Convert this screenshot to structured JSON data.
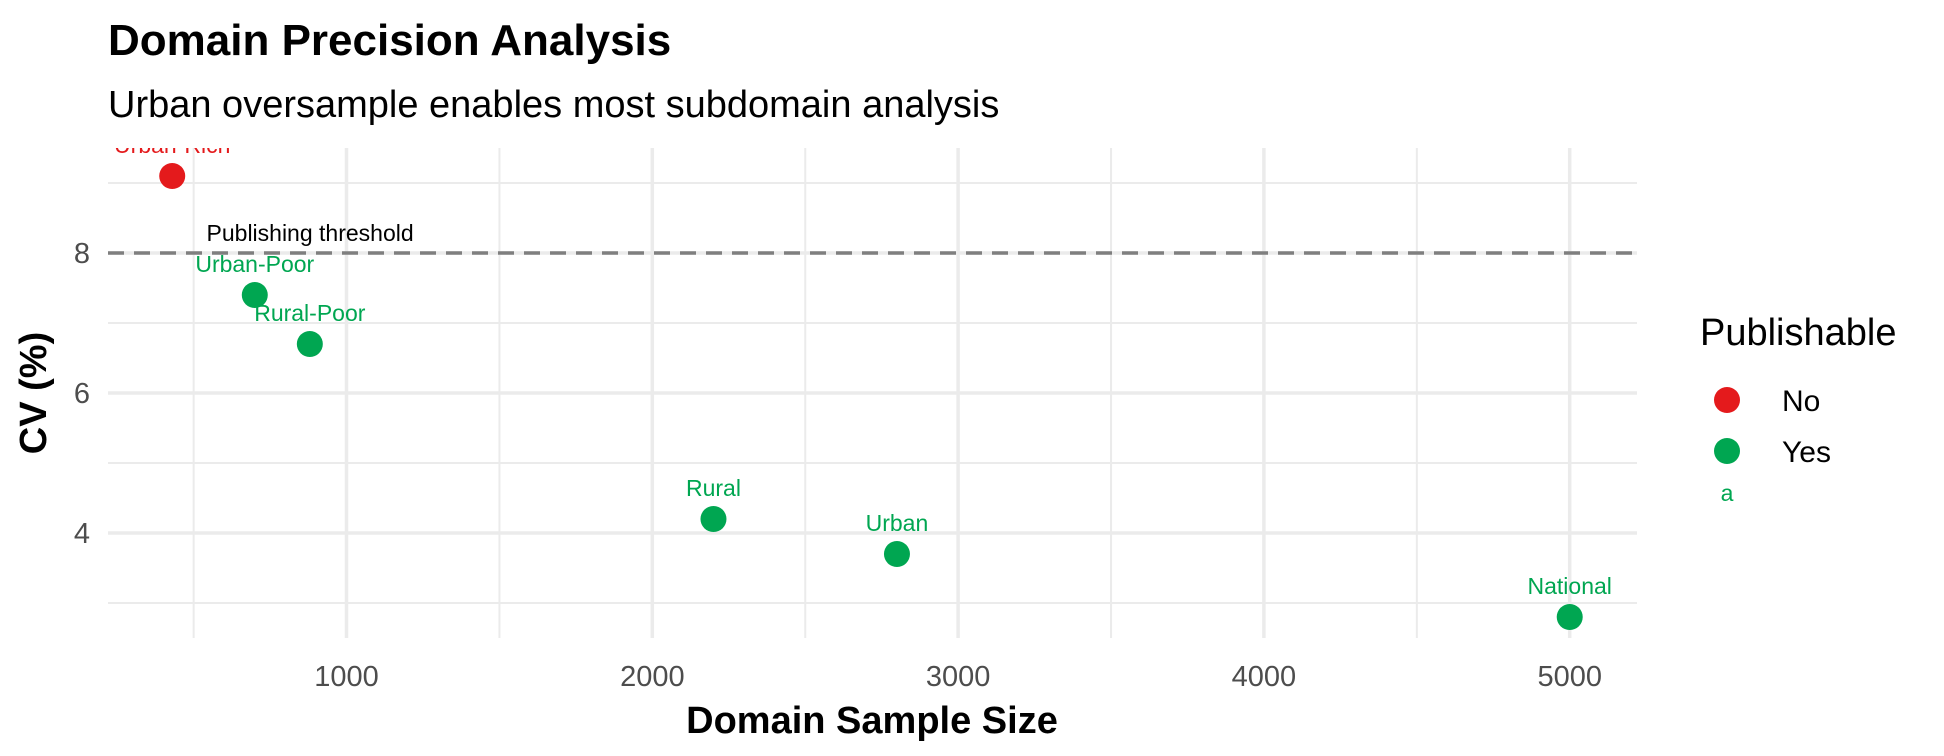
{
  "chart_data": {
    "type": "scatter",
    "title": "Domain Precision Analysis",
    "subtitle": "Urban oversample enables most subdomain analysis",
    "xlabel": "Domain Sample Size",
    "ylabel": "CV (%)",
    "xlim": [
      220,
      5220
    ],
    "ylim": [
      2.5,
      9.5
    ],
    "x_ticks": [
      1000,
      2000,
      3000,
      4000,
      5000
    ],
    "y_ticks": [
      4,
      6,
      8
    ],
    "grid": true,
    "points": [
      {
        "label": "Urban-Rich",
        "x": 430,
        "y": 9.1,
        "publishable": "No"
      },
      {
        "label": "Urban-Poor",
        "x": 700,
        "y": 7.4,
        "publishable": "Yes"
      },
      {
        "label": "Rural-Poor",
        "x": 880,
        "y": 6.7,
        "publishable": "Yes"
      },
      {
        "label": "Rural",
        "x": 2200,
        "y": 4.2,
        "publishable": "Yes"
      },
      {
        "label": "Urban",
        "x": 2800,
        "y": 3.7,
        "publishable": "Yes"
      },
      {
        "label": "National",
        "x": 5000,
        "y": 2.8,
        "publishable": "Yes"
      }
    ],
    "threshold": {
      "y": 8,
      "label": "Publishing threshold"
    },
    "legend": {
      "title": "Publishable",
      "placement": "right",
      "key_text": "a",
      "items": [
        {
          "name": "No",
          "color": "#e41a1c"
        },
        {
          "name": "Yes",
          "color": "#00a651"
        }
      ]
    },
    "colors": {
      "No": "#e41a1c",
      "Yes": "#00a651",
      "threshold": "#7f7f7f"
    }
  }
}
